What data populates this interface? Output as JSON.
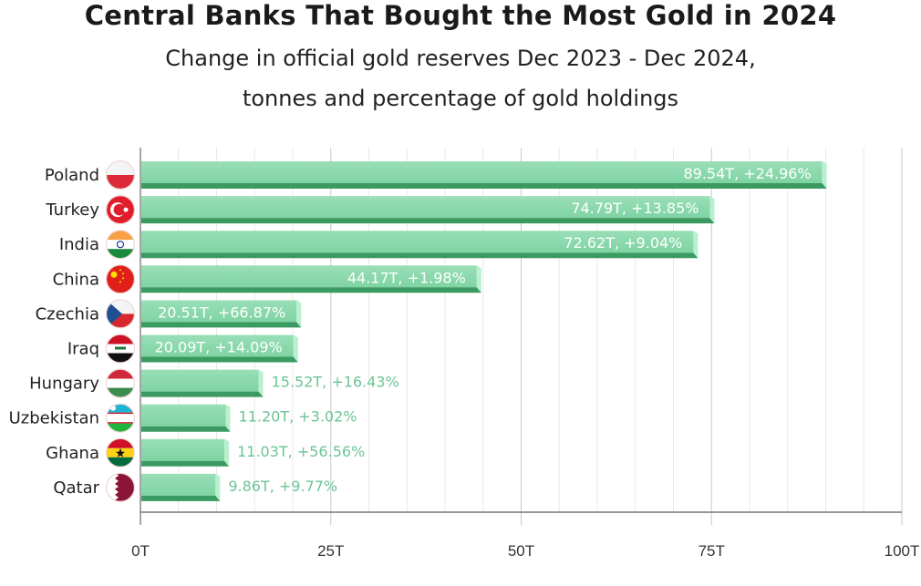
{
  "chart_data": {
    "type": "bar",
    "orientation": "horizontal",
    "title": "Central Banks That Bought the Most Gold in 2024",
    "subtitle_lines": [
      "Change in official gold reserves Dec 2023 - Dec 2024,",
      "tonnes and percentage of gold holdings"
    ],
    "categories": [
      "Poland",
      "Turkey",
      "India",
      "China",
      "Czechia",
      "Iraq",
      "Hungary",
      "Uzbekistan",
      "Ghana",
      "Qatar"
    ],
    "values": [
      89.54,
      74.79,
      72.62,
      44.17,
      20.51,
      20.09,
      15.52,
      11.2,
      11.03,
      9.86
    ],
    "pct_change": [
      24.96,
      13.85,
      9.04,
      1.98,
      66.87,
      14.09,
      16.43,
      3.02,
      56.56,
      9.77
    ],
    "data_labels": [
      "89.54T, +24.96%",
      "74.79T, +13.85%",
      "72.62T, +9.04%",
      "44.17T, +1.98%",
      "20.51T, +66.87%",
      "20.09T, +14.09%",
      "15.52T, +16.43%",
      "11.20T, +3.02%",
      "11.03T, +56.56%",
      "9.86T, +9.77%"
    ],
    "xlim": [
      0,
      100
    ],
    "xticks": [
      0,
      25,
      50,
      75,
      100
    ],
    "xtick_labels": [
      "0T",
      "25T",
      "50T",
      "75T",
      "100T"
    ],
    "minor_grid_step": 5,
    "grid": true,
    "xlabel": "",
    "ylabel": "",
    "colors": {
      "bar": "#7fd3a3",
      "bar_dark": "#3a9a62",
      "label_outside": "#6cc495"
    }
  }
}
